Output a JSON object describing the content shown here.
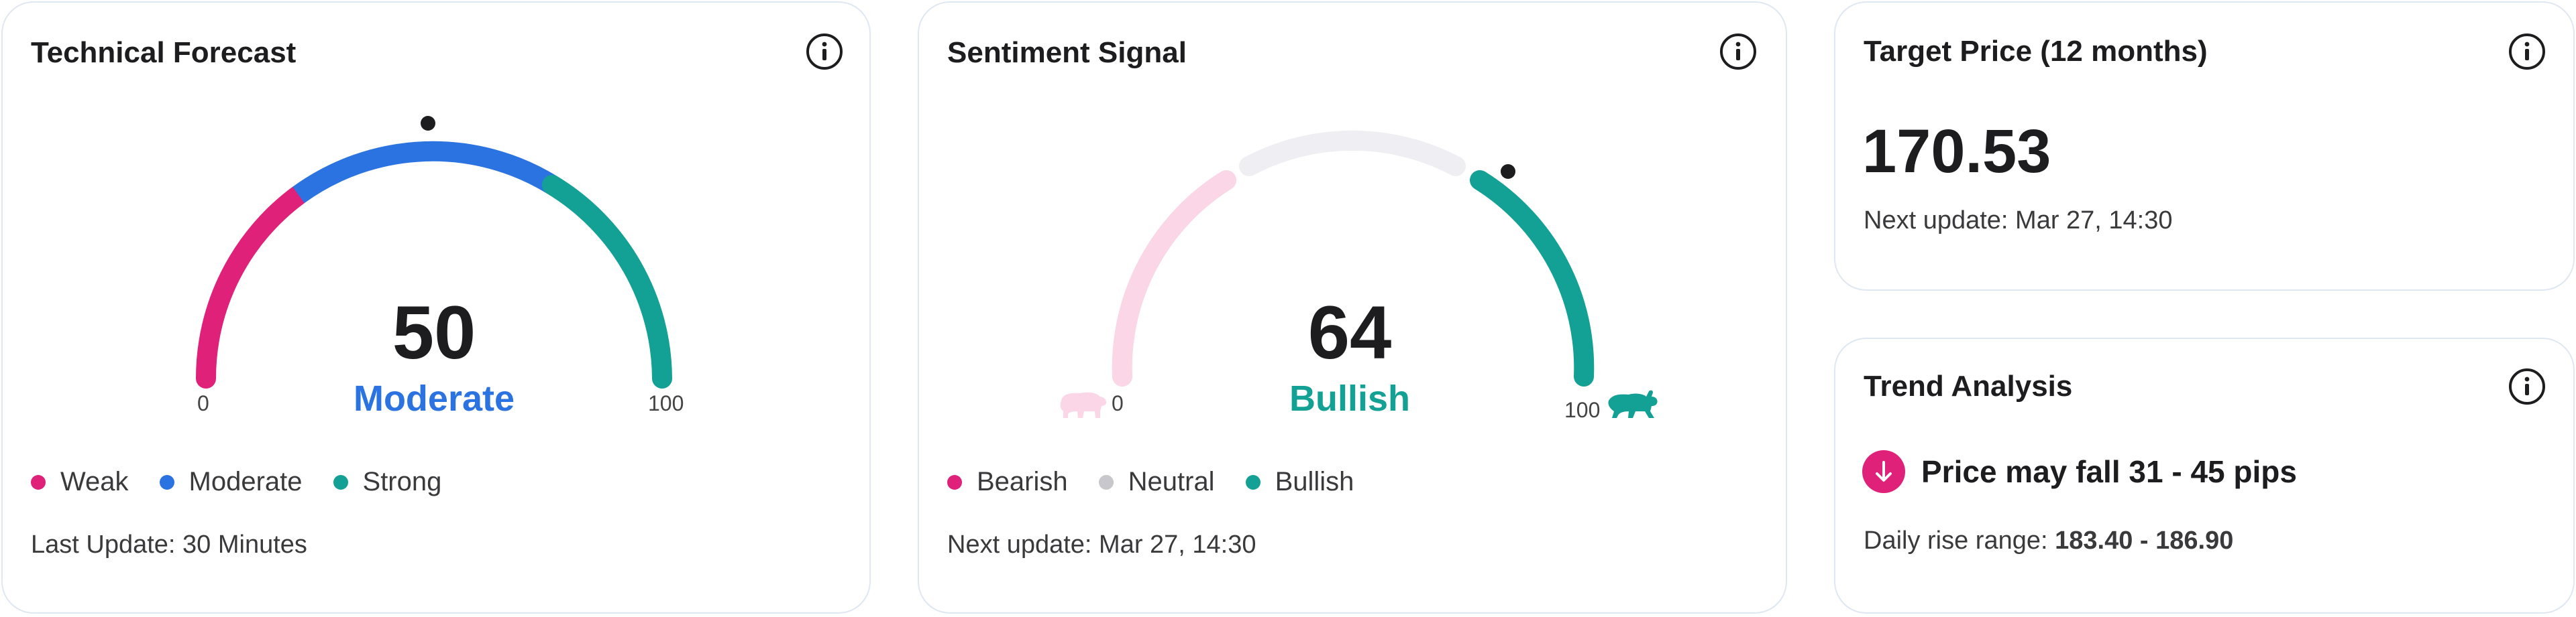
{
  "colors": {
    "weak": "#e0217a",
    "moderate": "#2a73e0",
    "strong": "#14a195",
    "bearish_faded": "#fad6e6",
    "neutral_faded": "#efeff3",
    "bullish": "#14a195",
    "neutral_dot": "#c7c7cc",
    "pointer": "#1d1d1f"
  },
  "technical": {
    "title": "Technical Forecast",
    "value": "50",
    "status": "Moderate",
    "scale_min": "0",
    "scale_max": "100",
    "legend": [
      "Weak",
      "Moderate",
      "Strong"
    ],
    "footer": "Last Update: 30 Minutes"
  },
  "sentiment": {
    "title": "Sentiment Signal",
    "value": "64",
    "status": "Bullish",
    "scale_min": "0",
    "scale_max": "100",
    "bear_icon": "bear-icon",
    "bull_icon": "bull-icon",
    "legend": [
      "Bearish",
      "Neutral",
      "Bullish"
    ],
    "footer": "Next update: Mar 27, 14:30"
  },
  "target": {
    "title": "Target Price (12 months)",
    "price": "170.53",
    "footer": "Next update: Mar 27, 14:30"
  },
  "trend": {
    "title": "Trend Analysis",
    "message": "Price may fall 31 - 45 pips",
    "range_label": "Daily rise range:",
    "range_value": "183.40 - 186.90",
    "icon": "arrow-down-icon"
  },
  "info_icon": "info-icon"
}
